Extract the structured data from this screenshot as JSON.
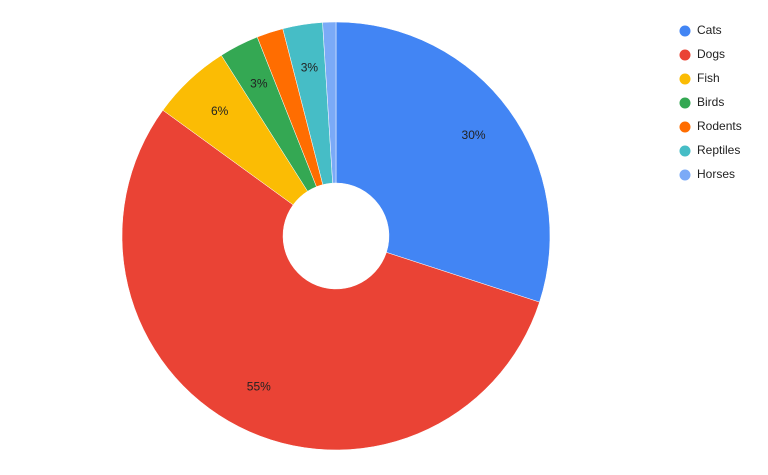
{
  "chart_data": {
    "type": "donut",
    "categories": [
      "Cats",
      "Dogs",
      "Fish",
      "Birds",
      "Rodents",
      "Reptiles",
      "Horses"
    ],
    "values": [
      30,
      55,
      6,
      3,
      2,
      3,
      1
    ],
    "value_labels": [
      "30%",
      "55%",
      "6%",
      "3%",
      null,
      "3%",
      null
    ],
    "colors": [
      "#4285f4",
      "#ea4335",
      "#fbbc04",
      "#34a853",
      "#ff6d01",
      "#46bdc6",
      "#7baaf7"
    ],
    "legend": "right"
  }
}
